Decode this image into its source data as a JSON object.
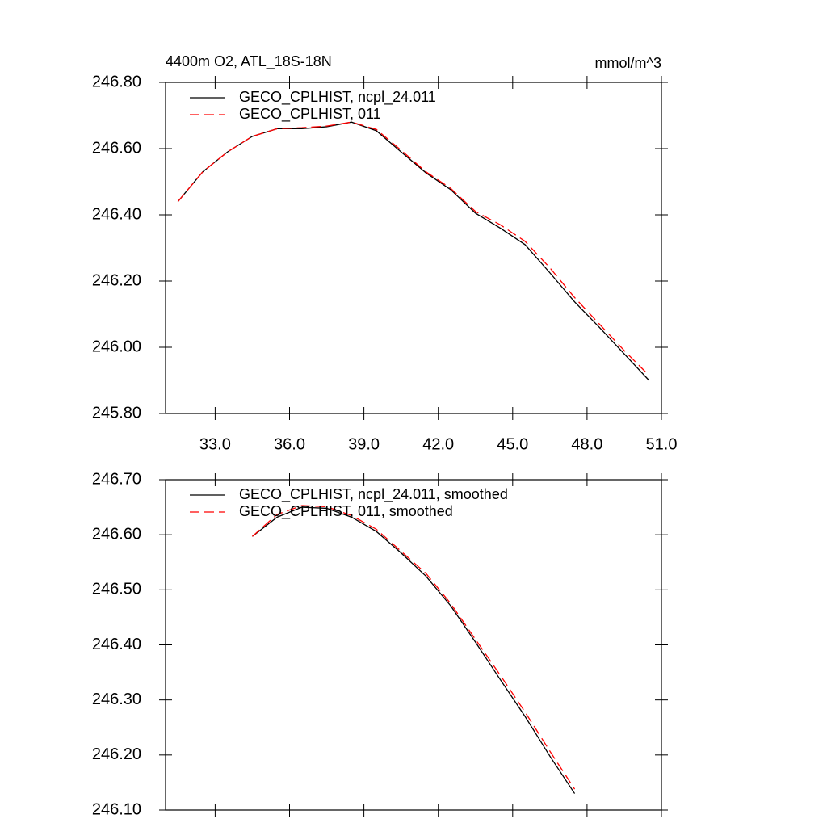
{
  "chart_data": [
    {
      "type": "line",
      "title": "4400m O2, ATL_18S-18N",
      "units": "mmol/m^3",
      "x": [
        31.5,
        32.5,
        33.5,
        34.5,
        35.5,
        36.5,
        37.5,
        38.5,
        39.5,
        40.5,
        41.5,
        42.5,
        43.5,
        44.5,
        45.5,
        46.5,
        47.5,
        48.5,
        49.5,
        50.5
      ],
      "series": [
        {
          "name": "GECO_CPLHIST, ncpl_24.011",
          "color": "#000000",
          "dashed": false,
          "values": [
            246.44,
            246.53,
            246.59,
            246.637,
            246.66,
            246.66,
            246.666,
            246.68,
            246.654,
            246.59,
            246.527,
            246.476,
            246.405,
            246.36,
            246.31,
            246.225,
            246.137,
            246.06,
            245.98,
            245.9
          ]
        },
        {
          "name": "GECO_CPLHIST, 011",
          "color": "#ff0000",
          "dashed": true,
          "values": [
            246.44,
            246.53,
            246.59,
            246.637,
            246.66,
            246.663,
            246.668,
            246.68,
            246.658,
            246.595,
            246.53,
            246.48,
            246.41,
            246.37,
            246.32,
            246.24,
            246.15,
            246.07,
            245.99,
            245.915
          ]
        }
      ],
      "xlim": [
        31,
        51
      ],
      "xticks": [
        {
          "value": 33,
          "label": "33.0"
        },
        {
          "value": 36,
          "label": "36.0"
        },
        {
          "value": 39,
          "label": "39.0"
        },
        {
          "value": 42,
          "label": "42.0"
        },
        {
          "value": 45,
          "label": "45.0"
        },
        {
          "value": 48,
          "label": "48.0"
        },
        {
          "value": 51,
          "label": "51.0"
        }
      ],
      "ylim": [
        245.8,
        246.8
      ],
      "yticks": [
        {
          "value": 245.8,
          "label": "245.80"
        },
        {
          "value": 246,
          "label": "246.00"
        },
        {
          "value": 246.2,
          "label": "246.20"
        },
        {
          "value": 246.4,
          "label": "246.40"
        },
        {
          "value": 246.6,
          "label": "246.60"
        },
        {
          "value": 246.8,
          "label": "246.80"
        }
      ]
    },
    {
      "type": "line",
      "x": [
        34.5,
        35.5,
        36.5,
        37.5,
        38.5,
        39.5,
        40.5,
        41.5,
        42.5,
        43.5,
        44.5,
        45.5,
        46.5,
        47.5
      ],
      "series": [
        {
          "name": "GECO_CPLHIST, ncpl_24.011, smoothed",
          "color": "#000000",
          "dashed": false,
          "values": [
            246.597,
            246.632,
            246.65,
            246.648,
            246.632,
            246.606,
            246.567,
            246.525,
            246.471,
            246.405,
            246.337,
            246.27,
            246.198,
            246.13
          ]
        },
        {
          "name": "GECO_CPLHIST, 011, smoothed",
          "color": "#ff0000",
          "dashed": true,
          "values": [
            246.597,
            246.637,
            246.653,
            246.651,
            246.635,
            246.61,
            246.57,
            246.53,
            246.475,
            246.41,
            246.345,
            246.278,
            246.207,
            246.138
          ]
        }
      ],
      "xlim": [
        31,
        51
      ],
      "xticks": [
        33,
        36,
        39,
        42,
        45,
        48,
        51
      ],
      "ylim": [
        246.1,
        246.7
      ],
      "yticks": [
        {
          "value": 246.1,
          "label": "246.10"
        },
        {
          "value": 246.2,
          "label": "246.20"
        },
        {
          "value": 246.3,
          "label": "246.30"
        },
        {
          "value": 246.4,
          "label": "246.40"
        },
        {
          "value": 246.5,
          "label": "246.50"
        },
        {
          "value": 246.6,
          "label": "246.60"
        },
        {
          "value": 246.7,
          "label": "246.70"
        }
      ]
    }
  ]
}
